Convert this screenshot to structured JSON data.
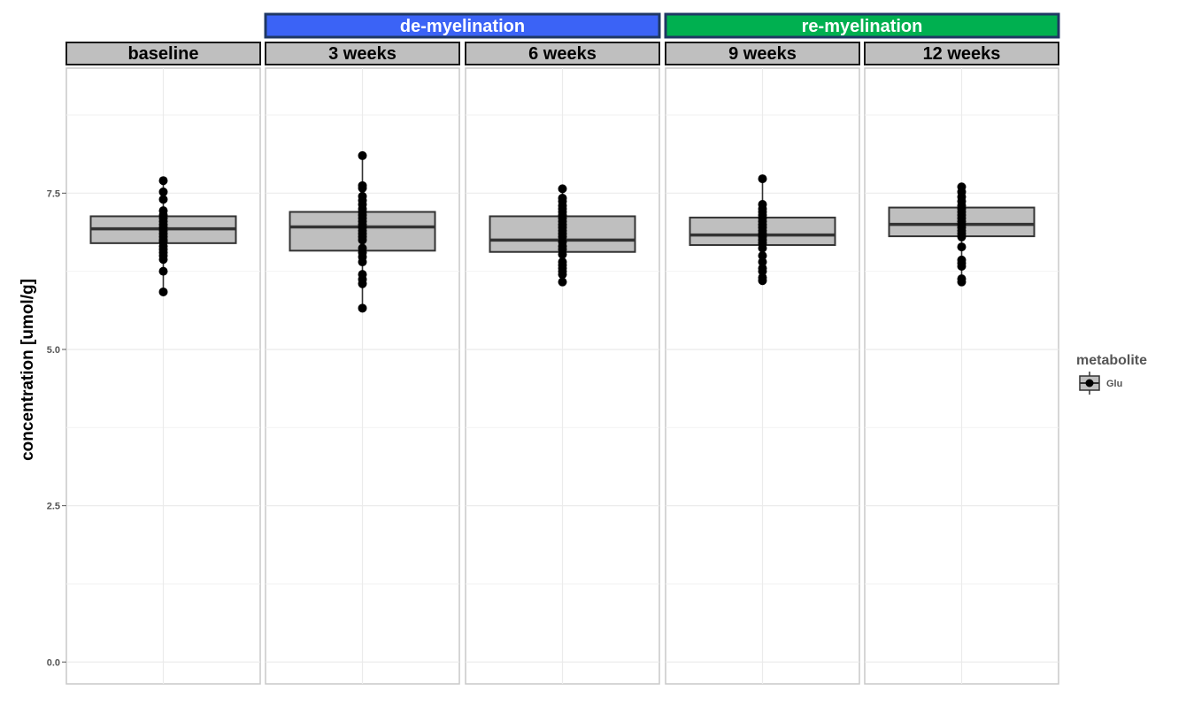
{
  "chart_data": {
    "type": "box",
    "ylabel": "concentration [umol/g]",
    "ylim": [
      -0.35,
      9.5
    ],
    "yticks": [
      0.0,
      2.5,
      5.0,
      7.5
    ],
    "ytick_labels": [
      "0.0",
      "2.5",
      "5.0",
      "7.5"
    ],
    "grid": true,
    "groups": [
      {
        "label": "de-myelination",
        "color": "#3b63f6",
        "panels": [
          1,
          2
        ]
      },
      {
        "label": "re-myelination",
        "color": "#00b050",
        "panels": [
          3,
          4
        ]
      }
    ],
    "legend": {
      "title": "metabolite",
      "items": [
        "Glu"
      ],
      "position": "right"
    },
    "panels": [
      {
        "label": "baseline",
        "q1": 6.7,
        "median": 6.93,
        "q3": 7.13,
        "points": [
          7.7,
          7.52,
          7.4,
          7.22,
          7.15,
          7.1,
          7.05,
          7.0,
          6.95,
          6.9,
          6.85,
          6.8,
          6.75,
          6.72,
          6.65,
          6.6,
          6.55,
          6.5,
          6.44,
          6.25,
          5.92
        ]
      },
      {
        "label": "3 weeks",
        "q1": 6.58,
        "median": 6.96,
        "q3": 7.2,
        "points": [
          8.1,
          7.62,
          7.58,
          7.45,
          7.38,
          7.32,
          7.25,
          7.2,
          7.15,
          7.1,
          7.05,
          7.0,
          6.95,
          6.9,
          6.85,
          6.8,
          6.75,
          6.62,
          6.55,
          6.48,
          6.4,
          6.2,
          6.12,
          6.05,
          5.66
        ]
      },
      {
        "label": "6 weeks",
        "q1": 6.56,
        "median": 6.75,
        "q3": 7.13,
        "points": [
          7.57,
          7.42,
          7.37,
          7.3,
          7.25,
          7.2,
          7.15,
          7.1,
          7.05,
          7.0,
          6.95,
          6.9,
          6.85,
          6.8,
          6.72,
          6.65,
          6.6,
          6.52,
          6.4,
          6.35,
          6.3,
          6.25,
          6.2,
          6.08
        ]
      },
      {
        "label": "9 weeks",
        "q1": 6.67,
        "median": 6.83,
        "q3": 7.11,
        "points": [
          7.73,
          7.32,
          7.25,
          7.2,
          7.15,
          7.1,
          7.05,
          7.0,
          6.95,
          6.9,
          6.85,
          6.8,
          6.75,
          6.7,
          6.62,
          6.5,
          6.4,
          6.3,
          6.25,
          6.15,
          6.1
        ]
      },
      {
        "label": "12 weeks",
        "q1": 6.81,
        "median": 7.0,
        "q3": 7.27,
        "points": [
          7.6,
          7.52,
          7.44,
          7.37,
          7.3,
          7.25,
          7.2,
          7.15,
          7.1,
          7.05,
          7.0,
          6.95,
          6.9,
          6.85,
          6.8,
          6.64,
          6.43,
          6.38,
          6.33,
          6.13,
          6.08
        ]
      }
    ]
  }
}
